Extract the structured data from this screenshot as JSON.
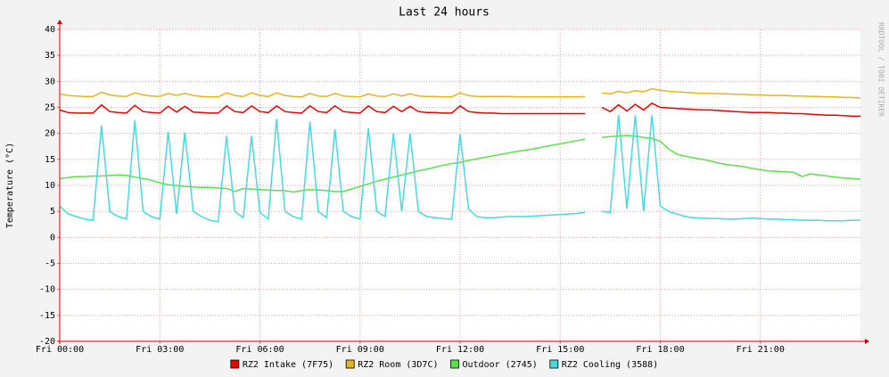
{
  "chart_data": {
    "type": "line",
    "title": "Last 24 hours",
    "y_label": "Temperature (°C)",
    "watermark": "RRDTOOL / TOBI OETIKER",
    "x": [
      0,
      0.25,
      0.5,
      0.75,
      1,
      1.25,
      1.5,
      1.75,
      2,
      2.25,
      2.5,
      2.75,
      3,
      3.25,
      3.5,
      3.75,
      4,
      4.25,
      4.5,
      4.75,
      5,
      5.25,
      5.5,
      5.75,
      6,
      6.25,
      6.5,
      6.75,
      7,
      7.25,
      7.5,
      7.75,
      8,
      8.25,
      8.5,
      8.75,
      9,
      9.25,
      9.5,
      9.75,
      10,
      10.25,
      10.5,
      10.75,
      11,
      11.25,
      11.5,
      11.75,
      12,
      12.25,
      12.5,
      12.75,
      13,
      13.25,
      13.5,
      13.75,
      14,
      14.25,
      14.5,
      14.75,
      15,
      15.25,
      15.5,
      15.75,
      16,
      16.25,
      16.5,
      16.75,
      17,
      17.25,
      17.5,
      17.75,
      18,
      18.25,
      18.5,
      18.75,
      19,
      19.25,
      19.5,
      19.75,
      20,
      20.25,
      20.5,
      20.75,
      21,
      21.25,
      21.5,
      21.75,
      22,
      22.25,
      22.5,
      22.75,
      23,
      23.25,
      23.5,
      23.75,
      24
    ],
    "xlim": [
      0,
      24
    ],
    "xticks": [
      {
        "value": 0,
        "label": "Fri 00:00"
      },
      {
        "value": 3,
        "label": "Fri 03:00"
      },
      {
        "value": 6,
        "label": "Fri 06:00"
      },
      {
        "value": 9,
        "label": "Fri 09:00"
      },
      {
        "value": 12,
        "label": "Fri 12:00"
      },
      {
        "value": 15,
        "label": "Fri 15:00"
      },
      {
        "value": 18,
        "label": "Fri 18:00"
      },
      {
        "value": 21,
        "label": "Fri 21:00"
      }
    ],
    "ylim": [
      -20,
      40
    ],
    "yticks": [
      -20,
      -15,
      -10,
      -5,
      0,
      5,
      10,
      15,
      20,
      25,
      30,
      35,
      40
    ],
    "grid": true,
    "series": [
      {
        "name": "RZ2 Intake (7F75)",
        "color": "#e60000",
        "values": [
          24.5,
          24,
          23.9,
          23.9,
          23.9,
          25.5,
          24.2,
          24,
          23.9,
          25.4,
          24.2,
          24,
          23.9,
          25.2,
          24.1,
          25.2,
          24.1,
          24,
          23.9,
          23.9,
          25.3,
          24.2,
          24,
          25.3,
          24.2,
          24,
          25.3,
          24.2,
          24,
          23.9,
          25.3,
          24.2,
          24,
          25.3,
          24.2,
          24,
          23.9,
          25.3,
          24.2,
          24,
          25.2,
          24.2,
          25.2,
          24.2,
          24,
          24,
          23.9,
          23.9,
          25.3,
          24.2,
          24,
          23.9,
          23.9,
          23.8,
          23.8,
          23.8,
          23.8,
          23.8,
          23.8,
          23.8,
          23.8,
          23.8,
          23.8,
          23.8,
          null,
          25,
          24.2,
          25.5,
          24.3,
          25.6,
          24.5,
          25.8,
          25,
          24.9,
          24.8,
          24.7,
          24.6,
          24.5,
          24.5,
          24.4,
          24.3,
          24.2,
          24.1,
          24,
          24,
          24,
          23.9,
          23.9,
          23.8,
          23.8,
          23.7,
          23.6,
          23.5,
          23.5,
          23.4,
          23.3,
          23.3
        ]
      },
      {
        "name": "RZ2 Room (3D7C)",
        "color": "#e6b422",
        "values": [
          27.6,
          27.3,
          27.2,
          27.1,
          27.1,
          27.9,
          27.4,
          27.2,
          27.1,
          27.8,
          27.4,
          27.2,
          27.1,
          27.7,
          27.3,
          27.7,
          27.3,
          27.1,
          27,
          27,
          27.8,
          27.3,
          27.1,
          27.8,
          27.3,
          27.1,
          27.8,
          27.3,
          27.1,
          27,
          27.7,
          27.2,
          27.1,
          27.7,
          27.2,
          27.1,
          27,
          27.6,
          27.2,
          27.1,
          27.6,
          27.2,
          27.6,
          27.2,
          27.1,
          27.1,
          27,
          27,
          27.8,
          27.3,
          27.1,
          27.1,
          27.1,
          27.1,
          27.1,
          27,
          27,
          27,
          27,
          27,
          27,
          27,
          27,
          27.1,
          null,
          27.8,
          27.6,
          28.1,
          27.8,
          28.2,
          28,
          28.6,
          28.3,
          28.1,
          28,
          27.9,
          27.8,
          27.7,
          27.7,
          27.6,
          27.6,
          27.5,
          27.5,
          27.4,
          27.4,
          27.3,
          27.3,
          27.3,
          27.2,
          27.2,
          27.1,
          27.1,
          27,
          27,
          26.9,
          26.9,
          26.8
        ]
      },
      {
        "name": "Outdoor (2745)",
        "color": "#5ae04a",
        "values": [
          11.3,
          11.5,
          11.7,
          11.7,
          11.8,
          11.8,
          11.9,
          12,
          11.9,
          11.6,
          11.3,
          11,
          10.5,
          10.1,
          10,
          9.8,
          9.7,
          9.6,
          9.6,
          9.5,
          9.4,
          8.8,
          9.4,
          9.3,
          9.2,
          9.1,
          9,
          9,
          8.7,
          9,
          9.2,
          9.1,
          9,
          8.8,
          8.8,
          9.3,
          9.8,
          10.3,
          10.8,
          11.2,
          11.6,
          12,
          12.4,
          12.8,
          13.1,
          13.5,
          13.9,
          14.2,
          14.4,
          14.8,
          15.1,
          15.4,
          15.7,
          16,
          16.3,
          16.6,
          16.8,
          17.1,
          17.4,
          17.7,
          18,
          18.3,
          18.6,
          18.9,
          null,
          19.2,
          19.4,
          19.5,
          19.6,
          19.5,
          19.2,
          19,
          18.5,
          17,
          16,
          15.6,
          15.3,
          15,
          14.7,
          14.3,
          14,
          13.8,
          13.6,
          13.3,
          13,
          12.8,
          12.7,
          12.6,
          12.5,
          11.7,
          12.2,
          12,
          11.8,
          11.6,
          11.4,
          11.3,
          11.2
        ]
      },
      {
        "name": "RZ2 Cooling (3588)",
        "color": "#48d8e0",
        "values": [
          6,
          4.5,
          4,
          3.5,
          3.3,
          21.5,
          5,
          4,
          3.5,
          22.5,
          5,
          4,
          3.5,
          20.3,
          4.5,
          20.2,
          5,
          4,
          3.3,
          3,
          19.5,
          5,
          3.8,
          19.5,
          4.8,
          3.5,
          22.8,
          5,
          4,
          3.5,
          22.3,
          5,
          3.8,
          20.8,
          5,
          4,
          3.5,
          21,
          5,
          4,
          20,
          5,
          20,
          5,
          4,
          3.8,
          3.6,
          3.5,
          19.8,
          5.5,
          4,
          3.8,
          3.8,
          3.9,
          4,
          4,
          4,
          4.1,
          4.2,
          4.3,
          4.4,
          4.5,
          4.6,
          4.8,
          null,
          5,
          4.8,
          23.5,
          5.5,
          23.5,
          5,
          23.5,
          6,
          5,
          4.5,
          4,
          3.8,
          3.7,
          3.6,
          3.6,
          3.5,
          3.5,
          3.6,
          3.7,
          3.6,
          3.5,
          3.5,
          3.4,
          3.4,
          3.3,
          3.3,
          3.3,
          3.2,
          3.2,
          3.2,
          3.3,
          3.3
        ]
      }
    ]
  }
}
